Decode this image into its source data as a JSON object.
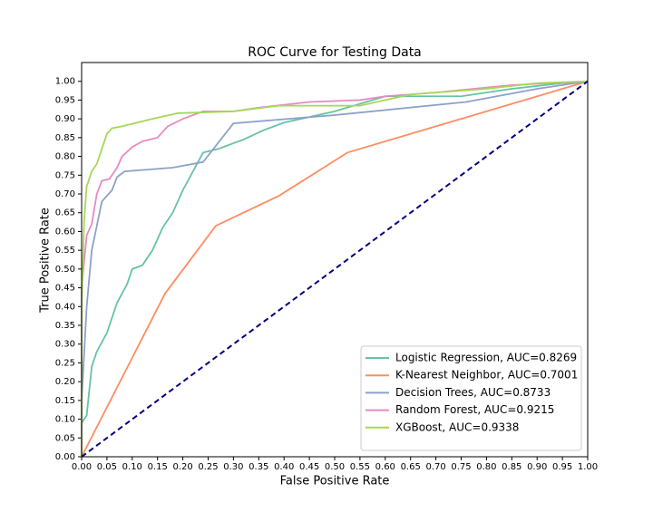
{
  "chart_data": {
    "type": "line",
    "title": "ROC Curve for Testing Data",
    "xlabel": "False Positive Rate",
    "ylabel": "True Positive Rate",
    "xlim": [
      0,
      1
    ],
    "ylim": [
      0,
      1.05
    ],
    "legend": "lower right",
    "xticks": [
      {
        "value": 0,
        "label": "0.00"
      },
      {
        "value": 0.05,
        "label": "0.05"
      },
      {
        "value": 0.1,
        "label": "0.10"
      },
      {
        "value": 0.15,
        "label": "0.15"
      },
      {
        "value": 0.2,
        "label": "0.20"
      },
      {
        "value": 0.25,
        "label": "0.25"
      },
      {
        "value": 0.3,
        "label": "0.30"
      },
      {
        "value": 0.35,
        "label": "0.35"
      },
      {
        "value": 0.4,
        "label": "0.40"
      },
      {
        "value": 0.45,
        "label": "0.45"
      },
      {
        "value": 0.5,
        "label": "0.50"
      },
      {
        "value": 0.55,
        "label": "0.55"
      },
      {
        "value": 0.6,
        "label": "0.60"
      },
      {
        "value": 0.65,
        "label": "0.65"
      },
      {
        "value": 0.7,
        "label": "0.70"
      },
      {
        "value": 0.75,
        "label": "0.75"
      },
      {
        "value": 0.8,
        "label": "0.80"
      },
      {
        "value": 0.85,
        "label": "0.85"
      },
      {
        "value": 0.9,
        "label": "0.90"
      },
      {
        "value": 0.95,
        "label": "0.95"
      },
      {
        "value": 1,
        "label": "1.00"
      }
    ],
    "yticks": [
      {
        "value": 0,
        "label": "0.00"
      },
      {
        "value": 0.05,
        "label": "0.05"
      },
      {
        "value": 0.1,
        "label": "0.10"
      },
      {
        "value": 0.15,
        "label": "0.15"
      },
      {
        "value": 0.2,
        "label": "0.20"
      },
      {
        "value": 0.25,
        "label": "0.25"
      },
      {
        "value": 0.3,
        "label": "0.30"
      },
      {
        "value": 0.35,
        "label": "0.35"
      },
      {
        "value": 0.4,
        "label": "0.40"
      },
      {
        "value": 0.45,
        "label": "0.45"
      },
      {
        "value": 0.5,
        "label": "0.50"
      },
      {
        "value": 0.55,
        "label": "0.55"
      },
      {
        "value": 0.6,
        "label": "0.60"
      },
      {
        "value": 0.65,
        "label": "0.65"
      },
      {
        "value": 0.7,
        "label": "0.70"
      },
      {
        "value": 0.75,
        "label": "0.75"
      },
      {
        "value": 0.8,
        "label": "0.80"
      },
      {
        "value": 0.85,
        "label": "0.85"
      },
      {
        "value": 0.9,
        "label": "0.90"
      },
      {
        "value": 0.95,
        "label": "0.95"
      },
      {
        "value": 1,
        "label": "1.00"
      }
    ],
    "series": [
      {
        "name": "Logistic Regression, AUC=0.8269",
        "color": "#66c2a5",
        "x": [
          0,
          0,
          0.01,
          0.015,
          0.02,
          0.03,
          0.05,
          0.07,
          0.09,
          0.1,
          0.12,
          0.14,
          0.16,
          0.18,
          0.2,
          0.22,
          0.24,
          0.27,
          0.29,
          0.32,
          0.36,
          0.4,
          0.45,
          0.5,
          0.6,
          0.75,
          0.85,
          0.95,
          1
        ],
        "values": [
          0,
          0.09,
          0.11,
          0.175,
          0.24,
          0.28,
          0.33,
          0.41,
          0.46,
          0.5,
          0.51,
          0.55,
          0.61,
          0.65,
          0.71,
          0.76,
          0.81,
          0.82,
          0.83,
          0.845,
          0.87,
          0.89,
          0.905,
          0.92,
          0.96,
          0.96,
          0.98,
          0.995,
          1
        ]
      },
      {
        "name": "K-Nearest Neighbor, AUC=0.7001",
        "color": "#fc8d62",
        "x": [
          0,
          0.165,
          0.265,
          0.39,
          0.525,
          1
        ],
        "values": [
          0,
          0.435,
          0.615,
          0.695,
          0.81,
          1
        ]
      },
      {
        "name": "Decision Trees, AUC=0.8733",
        "color": "#8da0cb",
        "x": [
          0,
          0,
          0.01,
          0.02,
          0.04,
          0.06,
          0.07,
          0.085,
          0.18,
          0.24,
          0.3,
          0.5,
          0.76,
          0.9,
          1
        ],
        "values": [
          0,
          0.15,
          0.4,
          0.55,
          0.68,
          0.71,
          0.745,
          0.76,
          0.77,
          0.785,
          0.888,
          0.91,
          0.945,
          0.98,
          1
        ]
      },
      {
        "name": "Random Forest, AUC=0.9215",
        "color": "#e78ac3",
        "x": [
          0,
          0,
          0.01,
          0.02,
          0.03,
          0.04,
          0.055,
          0.07,
          0.08,
          0.1,
          0.12,
          0.15,
          0.17,
          0.2,
          0.24,
          0.3,
          0.35,
          0.45,
          0.55,
          0.6,
          0.7,
          0.85,
          1
        ],
        "values": [
          0,
          0.45,
          0.59,
          0.62,
          0.7,
          0.735,
          0.74,
          0.77,
          0.8,
          0.825,
          0.84,
          0.85,
          0.88,
          0.9,
          0.92,
          0.92,
          0.93,
          0.945,
          0.95,
          0.96,
          0.97,
          0.99,
          1
        ]
      },
      {
        "name": "XGBoost, AUC=0.9338",
        "color": "#a6d854",
        "x": [
          0,
          0,
          0.005,
          0.01,
          0.02,
          0.03,
          0.04,
          0.05,
          0.06,
          0.08,
          0.11,
          0.14,
          0.19,
          0.3,
          0.39,
          0.55,
          0.65,
          0.8,
          0.9,
          1
        ],
        "values": [
          0,
          0.4,
          0.63,
          0.72,
          0.76,
          0.78,
          0.82,
          0.86,
          0.875,
          0.88,
          0.89,
          0.9,
          0.915,
          0.92,
          0.935,
          0.935,
          0.965,
          0.98,
          0.995,
          1
        ]
      },
      {
        "color": "#000080",
        "dashed": true,
        "x": [
          0,
          1
        ],
        "values": [
          0,
          1
        ]
      }
    ]
  }
}
